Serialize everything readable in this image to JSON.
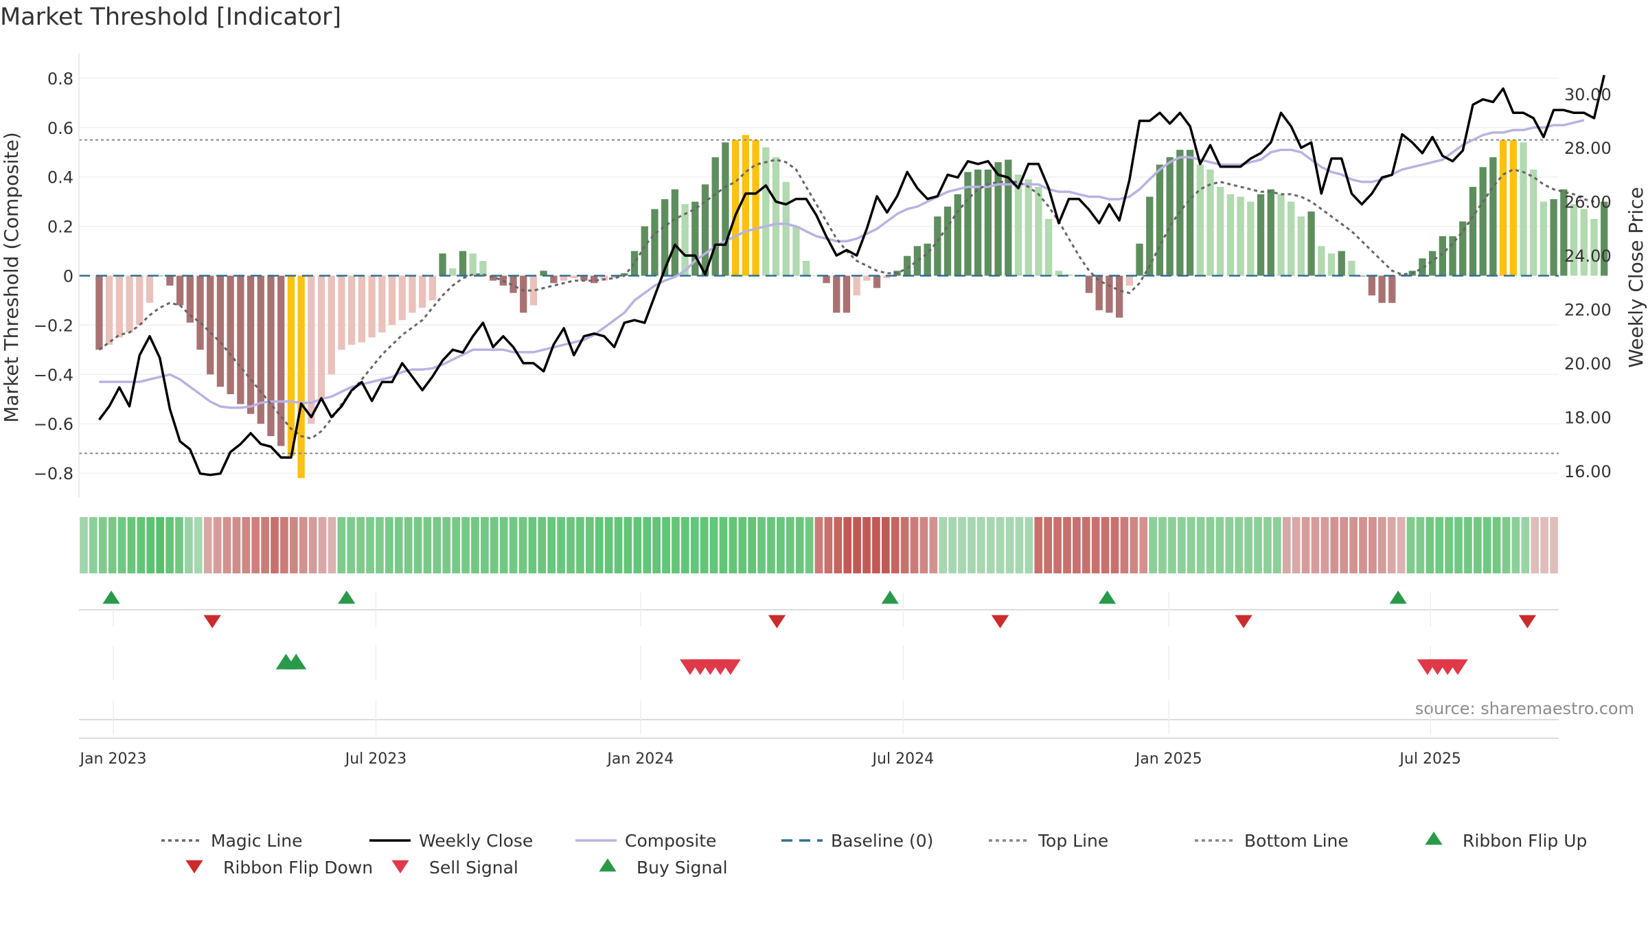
{
  "chart_data": {
    "type": "bar",
    "title": "Market Threshold [Indicator]",
    "ylabel": "Market Threshold (Composite)",
    "y2label": "Weekly Close Price",
    "source": "source: sharemaestro.com",
    "ylim": [
      -0.9,
      0.9
    ],
    "y2lim": [
      15.0,
      31.5
    ],
    "xlim": [
      -2.0,
      144.5
    ],
    "y_ticks": [
      {
        "v": 0.8,
        "label": "0.8"
      },
      {
        "v": 0.6,
        "label": "0.6"
      },
      {
        "v": 0.4,
        "label": "0.4"
      },
      {
        "v": 0.2,
        "label": "0.2"
      },
      {
        "v": 0,
        "label": "0"
      },
      {
        "v": -0.2,
        "label": "−0.2"
      },
      {
        "v": -0.4,
        "label": "−0.4"
      },
      {
        "v": -0.6,
        "label": "−0.6"
      },
      {
        "v": -0.8,
        "label": "−0.8"
      }
    ],
    "y2_ticks": [
      {
        "v": 30,
        "label": "30.00"
      },
      {
        "v": 28,
        "label": "28.00"
      },
      {
        "v": 26,
        "label": "26.00"
      },
      {
        "v": 24,
        "label": "24.00"
      },
      {
        "v": 22,
        "label": "22.00"
      },
      {
        "v": 20,
        "label": "20.00"
      },
      {
        "v": 18,
        "label": "18.00"
      },
      {
        "v": 16,
        "label": "16.00"
      }
    ],
    "x_ticks": [
      {
        "w": 1.4,
        "label": "Jan 2023"
      },
      {
        "w": 27.4,
        "label": "Jul 2023"
      },
      {
        "w": 53.6,
        "label": "Jan 2024"
      },
      {
        "w": 79.6,
        "label": "Jul 2024"
      },
      {
        "w": 105.9,
        "label": "Jan 2025"
      },
      {
        "w": 131.8,
        "label": "Jul 2025"
      }
    ],
    "top_line": 0.55,
    "bottom_line": -0.72,
    "baseline": 0,
    "composite_hist": [
      -0.3,
      -0.28,
      -0.25,
      -0.23,
      -0.2,
      -0.11,
      0,
      -0.04,
      -0.12,
      -0.19,
      -0.3,
      -0.4,
      -0.45,
      -0.48,
      -0.52,
      -0.56,
      -0.6,
      -0.65,
      -0.69,
      -0.73,
      -0.82,
      -0.6,
      -0.5,
      -0.4,
      -0.3,
      -0.28,
      -0.27,
      -0.25,
      -0.23,
      -0.2,
      -0.18,
      -0.15,
      -0.13,
      -0.1,
      0.09,
      0.03,
      0.1,
      0.09,
      0.06,
      -0.02,
      -0.04,
      -0.07,
      -0.15,
      -0.12,
      0.02,
      -0.03,
      -0.02,
      -0.01,
      -0.02,
      -0.03,
      -0.02,
      -0.01,
      0.01,
      0.1,
      0.2,
      0.27,
      0.31,
      0.35,
      0.29,
      0.3,
      0.37,
      0.48,
      0.54,
      0.55,
      0.57,
      0.55,
      0.52,
      0.48,
      0.38,
      0.2,
      0.06,
      0,
      -0.03,
      -0.15,
      -0.15,
      -0.08,
      -0.02,
      -0.05,
      -0.01,
      0.02,
      0.08,
      0.12,
      0.13,
      0.24,
      0.28,
      0.33,
      0.42,
      0.43,
      0.43,
      0.46,
      0.47,
      0.41,
      0.39,
      0.36,
      0.23,
      0.02,
      0.005,
      -0.002,
      -0.07,
      -0.14,
      -0.15,
      -0.17,
      -0.04,
      0.13,
      0.32,
      0.45,
      0.48,
      0.51,
      0.51,
      0.45,
      0.43,
      0.36,
      0.33,
      0.32,
      0.3,
      0.33,
      0.35,
      0.33,
      0.3,
      0.24,
      0.26,
      0.12,
      0.09,
      0.1,
      0.06,
      -0.003,
      -0.08,
      -0.11,
      -0.11,
      0.005,
      0.02,
      0.07,
      0.1,
      0.16,
      0.16,
      0.22,
      0.36,
      0.44,
      0.48,
      0.55,
      0.55,
      0.54,
      0.43,
      0.3,
      0.31,
      0.35,
      0.29,
      0.27,
      0.23,
      0.3
    ],
    "magic_line": [
      -0.3,
      -0.27,
      -0.24,
      -0.23,
      -0.2,
      -0.16,
      -0.13,
      -0.11,
      -0.12,
      -0.16,
      -0.19,
      -0.23,
      -0.27,
      -0.32,
      -0.37,
      -0.42,
      -0.47,
      -0.52,
      -0.57,
      -0.62,
      -0.65,
      -0.66,
      -0.63,
      -0.58,
      -0.52,
      -0.47,
      -0.42,
      -0.37,
      -0.32,
      -0.28,
      -0.24,
      -0.21,
      -0.18,
      -0.13,
      -0.08,
      -0.04,
      -0.01,
      0.005,
      0.005,
      -0.005,
      -0.02,
      -0.04,
      -0.06,
      -0.06,
      -0.05,
      -0.04,
      -0.03,
      -0.02,
      -0.02,
      -0.02,
      -0.015,
      -0.01,
      0,
      0.05,
      0.12,
      0.17,
      0.2,
      0.23,
      0.25,
      0.27,
      0.3,
      0.33,
      0.36,
      0.38,
      0.42,
      0.45,
      0.46,
      0.47,
      0.46,
      0.43,
      0.36,
      0.29,
      0.22,
      0.15,
      0.1,
      0.06,
      0.04,
      0.02,
      0.01,
      0.01,
      0.03,
      0.06,
      0.09,
      0.14,
      0.2,
      0.26,
      0.31,
      0.35,
      0.37,
      0.38,
      0.38,
      0.38,
      0.36,
      0.33,
      0.28,
      0.22,
      0.15,
      0.08,
      0.02,
      -0.02,
      -0.04,
      -0.06,
      -0.07,
      -0.03,
      0.04,
      0.12,
      0.2,
      0.26,
      0.31,
      0.35,
      0.37,
      0.38,
      0.37,
      0.36,
      0.35,
      0.34,
      0.34,
      0.33,
      0.33,
      0.32,
      0.3,
      0.27,
      0.24,
      0.21,
      0.18,
      0.14,
      0.1,
      0.06,
      0.02,
      0.005,
      0.01,
      0.03,
      0.06,
      0.09,
      0.13,
      0.18,
      0.24,
      0.3,
      0.36,
      0.41,
      0.43,
      0.42,
      0.4,
      0.37,
      0.35,
      0.34,
      0.33,
      0.31,
      0.3
    ],
    "weekly_close": [
      17.9,
      18.4,
      19.1,
      18.4,
      20.3,
      21.0,
      20.2,
      18.3,
      17.1,
      16.8,
      15.9,
      15.85,
      15.9,
      16.7,
      17.0,
      17.4,
      17.0,
      16.9,
      16.5,
      16.5,
      18.5,
      18.0,
      18.7,
      18.0,
      18.4,
      19.0,
      19.3,
      18.6,
      19.3,
      19.3,
      20.0,
      19.5,
      19.0,
      19.5,
      20.1,
      20.5,
      20.4,
      21.0,
      21.5,
      20.6,
      21.0,
      20.6,
      20.0,
      20.0,
      19.7,
      20.7,
      21.3,
      20.3,
      21.0,
      21.1,
      21.0,
      20.6,
      21.5,
      21.6,
      21.5,
      22.5,
      23.5,
      24.4,
      24.0,
      24.0,
      23.3,
      24.4,
      24.4,
      25.5,
      26.3,
      26.3,
      26.6,
      26.0,
      25.9,
      26.1,
      26.1,
      25.5,
      24.7,
      24.0,
      24.2,
      24.0,
      25.0,
      26.2,
      25.6,
      26.2,
      27.1,
      26.5,
      26.1,
      26.2,
      27.0,
      26.9,
      27.5,
      27.4,
      27.5,
      27.0,
      26.9,
      26.5,
      27.4,
      27.4,
      26.5,
      25.2,
      26.1,
      26.1,
      25.7,
      25.2,
      25.9,
      25.3,
      26.8,
      29.0,
      29.0,
      29.3,
      28.9,
      29.3,
      28.8,
      27.4,
      28.1,
      27.3,
      27.3,
      27.3,
      27.6,
      27.8,
      28.2,
      29.3,
      28.8,
      28.0,
      28.2,
      26.3,
      27.6,
      27.6,
      26.3,
      25.9,
      26.3,
      26.9,
      27.0,
      28.5,
      28.2,
      27.8,
      28.4,
      27.7,
      27.5,
      27.9,
      29.6,
      29.8,
      29.7,
      30.2,
      29.3,
      29.3,
      29.1,
      28.4,
      29.4,
      29.4,
      29.3,
      29.3,
      29.1,
      30.7
    ],
    "composite_line": [
      -0.43,
      -0.43,
      -0.43,
      -0.43,
      -0.43,
      -0.42,
      -0.41,
      -0.4,
      -0.42,
      -0.45,
      -0.48,
      -0.51,
      -0.53,
      -0.535,
      -0.535,
      -0.53,
      -0.515,
      -0.51,
      -0.51,
      -0.51,
      -0.515,
      -0.515,
      -0.5,
      -0.49,
      -0.47,
      -0.45,
      -0.44,
      -0.43,
      -0.42,
      -0.41,
      -0.39,
      -0.38,
      -0.38,
      -0.375,
      -0.36,
      -0.34,
      -0.32,
      -0.3,
      -0.3,
      -0.3,
      -0.3,
      -0.31,
      -0.31,
      -0.31,
      -0.3,
      -0.29,
      -0.28,
      -0.27,
      -0.26,
      -0.24,
      -0.21,
      -0.18,
      -0.15,
      -0.1,
      -0.07,
      -0.04,
      -0.02,
      -0.005,
      0.02,
      0.06,
      0.09,
      0.12,
      0.14,
      0.16,
      0.18,
      0.19,
      0.2,
      0.21,
      0.21,
      0.2,
      0.18,
      0.16,
      0.15,
      0.14,
      0.14,
      0.15,
      0.17,
      0.19,
      0.22,
      0.25,
      0.27,
      0.28,
      0.3,
      0.32,
      0.34,
      0.35,
      0.36,
      0.36,
      0.36,
      0.37,
      0.37,
      0.37,
      0.37,
      0.37,
      0.35,
      0.34,
      0.34,
      0.33,
      0.32,
      0.32,
      0.31,
      0.31,
      0.32,
      0.35,
      0.39,
      0.43,
      0.46,
      0.48,
      0.48,
      0.47,
      0.46,
      0.45,
      0.45,
      0.45,
      0.46,
      0.47,
      0.5,
      0.51,
      0.51,
      0.5,
      0.47,
      0.44,
      0.42,
      0.41,
      0.39,
      0.38,
      0.38,
      0.39,
      0.41,
      0.43,
      0.44,
      0.45,
      0.46,
      0.47,
      0.5,
      0.53,
      0.55,
      0.57,
      0.58,
      0.58,
      0.59,
      0.59,
      0.6,
      0.6,
      0.61,
      0.61,
      0.62,
      0.63
    ],
    "ribbon_shades": [
      9,
      12,
      14,
      15,
      16,
      17,
      18,
      19,
      20,
      18,
      16,
      10,
      8,
      -10,
      -12,
      -14,
      -15,
      -16,
      -17,
      -18,
      -20,
      -18,
      -16,
      -14,
      -12,
      -10,
      -8,
      14,
      14,
      14,
      14,
      14,
      15,
      15,
      15,
      15,
      15,
      15,
      15,
      15,
      15,
      16,
      16,
      16,
      16,
      16,
      16,
      17,
      17,
      17,
      17,
      17,
      17,
      17,
      18,
      18,
      18,
      18,
      18,
      18,
      18,
      18,
      18,
      18,
      18,
      18,
      18,
      18,
      18,
      18,
      18,
      17,
      17,
      17,
      17,
      17,
      16,
      -18,
      -20,
      -22,
      -24,
      -24,
      -24,
      -24,
      -24,
      -22,
      -20,
      -18,
      -16,
      -14,
      8,
      8,
      8,
      8,
      8,
      8,
      8,
      8,
      8,
      8,
      -20,
      -20,
      -20,
      -20,
      -20,
      -20,
      -20,
      -20,
      -20,
      -18,
      -16,
      -14,
      12,
      12,
      12,
      12,
      12,
      12,
      12,
      12,
      12,
      12,
      12,
      12,
      12,
      12,
      -10,
      -10,
      -12,
      -12,
      -12,
      -14,
      -14,
      -14,
      -14,
      -14,
      -12,
      -10,
      -8,
      14,
      14,
      16,
      16,
      16,
      16,
      16,
      16,
      16,
      16,
      14,
      12,
      10,
      -6,
      -6,
      -6
    ],
    "ribbon_flip_up": [
      1.2,
      24.5,
      78.3,
      99.8,
      128.6
    ],
    "ribbon_flip_down": [
      11.2,
      67.1,
      89.2,
      113.3,
      141.4
    ],
    "buy_signal": [
      18.5,
      19.5
    ],
    "sell_signal": [
      58.5,
      59.5,
      60.5,
      61.5,
      62.5,
      131.5,
      132.5,
      133.5,
      134.5
    ],
    "legend": [
      {
        "label": "Magic Line",
        "kind": "dotted",
        "color": "#666666"
      },
      {
        "label": "Weekly Close",
        "kind": "solid",
        "color": "#000000"
      },
      {
        "label": "Composite",
        "kind": "solid",
        "color": "#b9b2e2"
      },
      {
        "label": "Baseline (0)",
        "kind": "dashed",
        "color": "#2e6f94"
      },
      {
        "label": "Top Line",
        "kind": "dotted",
        "color": "#888888"
      },
      {
        "label": "Bottom Line",
        "kind": "dotted",
        "color": "#888888"
      },
      {
        "label": "Ribbon Flip Up",
        "kind": "tri-up",
        "color": "#2a9a4a"
      },
      {
        "label": "Ribbon Flip Down",
        "kind": "tri-down",
        "color": "#cc2b2b"
      },
      {
        "label": "Sell Signal",
        "kind": "tri-down",
        "color": "#e0394a"
      },
      {
        "label": "Buy Signal",
        "kind": "tri-up",
        "color": "#2a9a4a"
      }
    ],
    "colors": {
      "pos_strong": "#5e8e5e",
      "pos_light": "#b2d9b0",
      "neg_strong": "#a97272",
      "neg_light": "#ebc1bb",
      "extreme": "#fdc10f",
      "magic": "#666666",
      "close": "#000000",
      "composite": "#b9b2e2",
      "baseline": "#2e6f94"
    }
  }
}
